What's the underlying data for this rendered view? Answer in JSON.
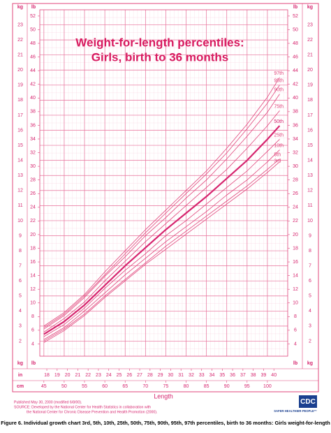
{
  "chart_data": {
    "type": "line",
    "title": "Weight-for-length percentiles:",
    "subtitle": "Girls, birth to 36 months",
    "x_label": "Length",
    "x_unit": "cm",
    "x2_unit": "in",
    "y_label": "kg",
    "y2_label": "lb",
    "x": [
      45,
      50,
      55,
      60,
      65,
      70,
      75,
      80,
      85,
      90,
      95,
      100,
      103
    ],
    "series": [
      {
        "name": "97th",
        "color": "#e0457b",
        "width": 0.8,
        "values": [
          3.0,
          3.9,
          5.1,
          6.6,
          8.0,
          9.4,
          10.7,
          12.0,
          13.3,
          14.8,
          16.4,
          18.2,
          19.5
        ]
      },
      {
        "name": "95th",
        "color": "#e0457b",
        "width": 0.8,
        "values": [
          2.9,
          3.8,
          5.0,
          6.4,
          7.8,
          9.2,
          10.5,
          11.8,
          13.1,
          14.5,
          16.1,
          17.8,
          19.0
        ]
      },
      {
        "name": "90th",
        "color": "#e0457b",
        "width": 0.8,
        "values": [
          2.8,
          3.7,
          4.9,
          6.3,
          7.6,
          9.0,
          10.2,
          11.5,
          12.7,
          14.1,
          15.6,
          17.2,
          18.4
        ]
      },
      {
        "name": "75th",
        "color": "#e0457b",
        "width": 0.8,
        "values": [
          2.6,
          3.5,
          4.6,
          6.0,
          7.3,
          8.6,
          9.8,
          11.0,
          12.2,
          13.4,
          14.8,
          16.3,
          17.3
        ]
      },
      {
        "name": "50th",
        "color": "#d6246e",
        "width": 2.2,
        "values": [
          2.46,
          3.3,
          4.4,
          5.7,
          7.0,
          8.2,
          9.4,
          10.5,
          11.6,
          12.8,
          14.0,
          15.4,
          16.3
        ]
      },
      {
        "name": "25th",
        "color": "#e0457b",
        "width": 0.8,
        "values": [
          2.3,
          3.1,
          4.2,
          5.5,
          6.7,
          7.8,
          9.0,
          10.0,
          11.1,
          12.2,
          13.3,
          14.6,
          15.4
        ]
      },
      {
        "name": "10th",
        "color": "#e0457b",
        "width": 0.8,
        "values": [
          2.1,
          2.9,
          4.0,
          5.2,
          6.4,
          7.5,
          8.6,
          9.6,
          10.6,
          11.7,
          12.7,
          13.9,
          14.7
        ]
      },
      {
        "name": "5th",
        "color": "#e0457b",
        "width": 0.8,
        "values": [
          2.0,
          2.8,
          3.8,
          5.0,
          6.1,
          7.2,
          8.3,
          9.3,
          10.3,
          11.3,
          12.3,
          13.4,
          14.1
        ]
      },
      {
        "name": "3rd",
        "color": "#e0457b",
        "width": 0.8,
        "values": [
          1.9,
          2.7,
          3.7,
          4.9,
          6.0,
          7.1,
          8.1,
          9.1,
          10.1,
          11.1,
          12.1,
          13.2,
          13.9
        ]
      }
    ],
    "xlim": [
      44,
      105
    ],
    "xticks": [
      45,
      50,
      55,
      60,
      65,
      70,
      75,
      80,
      85,
      90,
      95,
      100
    ],
    "x2lim": [
      17.32,
      41.34
    ],
    "x2ticks": [
      18,
      19,
      20,
      21,
      22,
      23,
      24,
      25,
      26,
      27,
      28,
      29,
      30,
      31,
      32,
      33,
      34,
      35,
      36,
      37,
      38,
      39,
      40
    ],
    "ylim": [
      1,
      24
    ],
    "yticks": [
      2,
      3,
      4,
      5,
      6,
      7,
      8,
      9,
      10,
      11,
      12,
      13,
      14,
      15,
      16,
      17,
      18,
      19,
      20,
      21,
      22,
      23
    ],
    "y2lim": [
      2.2046,
      52.911
    ],
    "y2ticks": [
      4,
      6,
      8,
      10,
      12,
      14,
      16,
      18,
      20,
      22,
      24,
      26,
      28,
      30,
      32,
      34,
      36,
      38,
      40,
      42,
      44,
      46,
      48,
      50,
      52
    ],
    "grid": true
  },
  "footer": {
    "published": "Published May 30, 2000 (modified 6/8/00).",
    "source_1": "SOURCE: Developed by the National Center for Health Statistics in collaboration with",
    "source_2": "the National Center for Chronic Disease Prevention and Health Promotion (2000).",
    "logo": "CDC",
    "logo_tagline": "SAFER·HEALTHIER·PEOPLE™",
    "caption": "Figure 6. Individual growth chart 3rd, 5th, 10th, 25th, 50th, 75th, 90th, 95th, 97th percentiles, birth to 36 months: Girls weight-for-length"
  }
}
